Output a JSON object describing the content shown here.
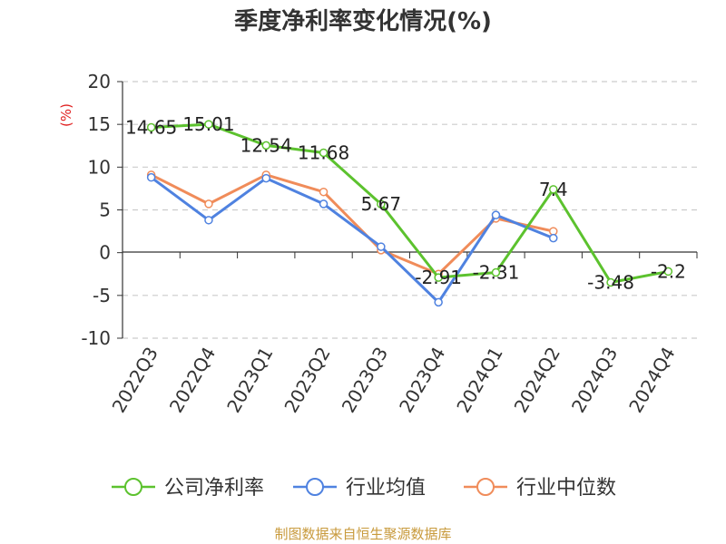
{
  "chart_data": {
    "type": "line",
    "title": "季度净利率变化情况(%)",
    "ylabel": "(%)",
    "xlabel": "",
    "categories": [
      "2022Q3",
      "2022Q4",
      "2023Q1",
      "2023Q2",
      "2023Q3",
      "2023Q4",
      "2024Q1",
      "2024Q2",
      "2024Q3",
      "2024Q4"
    ],
    "ylim": [
      -10,
      20
    ],
    "yticks": [
      20,
      15,
      10,
      5,
      0,
      -5,
      -10
    ],
    "grid": true,
    "legend_position": "bottom",
    "series": [
      {
        "name": "公司净利率",
        "color": "#5cc22e",
        "values": [
          14.65,
          15.01,
          12.54,
          11.68,
          5.67,
          -2.91,
          -2.31,
          7.4,
          -3.48,
          -2.2
        ],
        "labels": [
          "14.65",
          "15.01",
          "12.54",
          "11.68",
          "5.67",
          "-2.91",
          "-2.31",
          "7.4",
          "-3.48",
          "-2.2"
        ]
      },
      {
        "name": "行业均值",
        "color": "#4f82e0",
        "values": [
          8.8,
          3.8,
          8.7,
          5.7,
          0.7,
          -5.8,
          4.4,
          1.7,
          null,
          null
        ]
      },
      {
        "name": "行业中位数",
        "color": "#f08c5a",
        "values": [
          9.1,
          5.7,
          9.1,
          7.1,
          0.3,
          -2.5,
          4.0,
          2.5,
          null,
          null
        ]
      }
    ]
  },
  "source": "制图数据来自恒生聚源数据库"
}
